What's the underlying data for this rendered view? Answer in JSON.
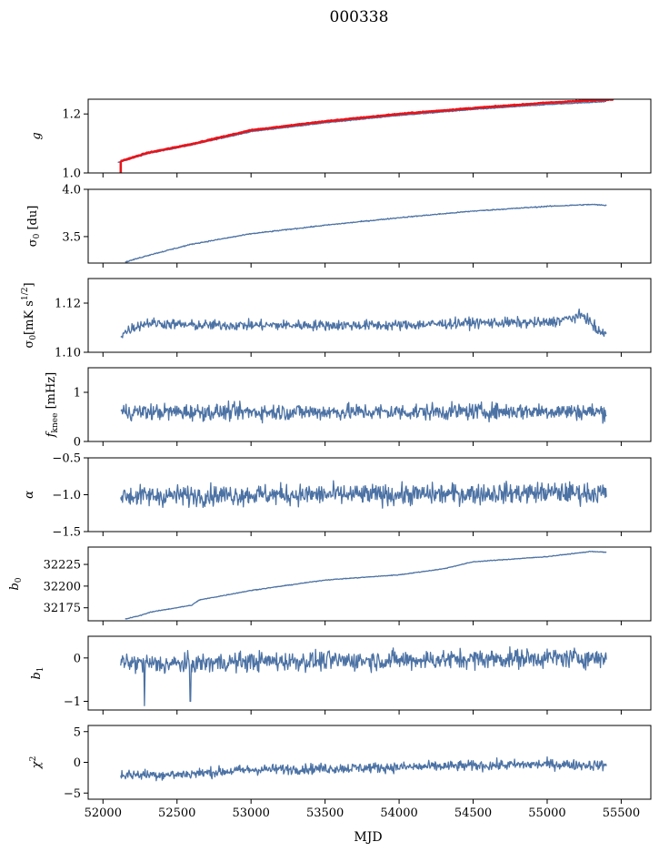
{
  "title": "000338",
  "xlabel": "MJD",
  "colors": {
    "series": "#4c72a4",
    "overlay": "#e8141b"
  },
  "chart_data": [
    {
      "type": "line",
      "ylabel": "g",
      "xlim": [
        51900,
        55700
      ],
      "ylim": [
        1.0,
        1.25
      ],
      "yticks": [
        1.0,
        1.2
      ],
      "ytick_labels": [
        "1.0",
        "1.2"
      ],
      "noise": 0.001,
      "series": [
        {
          "color": "#4c72a4",
          "x": [
            52100,
            52300,
            52600,
            53000,
            53500,
            54000,
            54500,
            55000,
            55400
          ],
          "y": [
            1.035,
            1.065,
            1.095,
            1.14,
            1.17,
            1.195,
            1.215,
            1.232,
            1.242
          ]
        },
        {
          "color": "#e8141b",
          "x": [
            52120,
            52300,
            52600,
            53000,
            53500,
            54000,
            54500,
            55000,
            55450
          ],
          "y": [
            1.04,
            1.068,
            1.098,
            1.145,
            1.175,
            1.2,
            1.22,
            1.238,
            1.25
          ],
          "drop": {
            "x": 52120,
            "y_from": 1.04,
            "y_to": 1.0
          }
        }
      ]
    },
    {
      "type": "line",
      "ylabel": "σ0 [du]",
      "xlim": [
        51900,
        55700
      ],
      "ylim": [
        3.22,
        4.0
      ],
      "yticks": [
        3.5,
        4.0
      ],
      "ytick_labels": [
        "3.5",
        "4.0"
      ],
      "noise": 0.004,
      "series": [
        {
          "x": [
            52150,
            52300,
            52600,
            53000,
            53500,
            54000,
            54500,
            55000,
            55300,
            55400
          ],
          "y": [
            3.23,
            3.3,
            3.42,
            3.53,
            3.62,
            3.7,
            3.77,
            3.82,
            3.84,
            3.83
          ]
        }
      ]
    },
    {
      "type": "line",
      "ylabel": "σ0[mK s^1/2]",
      "xlim": [
        51900,
        55700
      ],
      "ylim": [
        1.1,
        1.13
      ],
      "yticks": [
        1.1,
        1.12
      ],
      "ytick_labels": [
        "1.10",
        "1.12"
      ],
      "noise": 0.0015,
      "series": [
        {
          "x": [
            52120,
            52200,
            52300,
            52600,
            53000,
            53500,
            54000,
            54500,
            55000,
            55250,
            55350,
            55400
          ],
          "y": [
            1.107,
            1.11,
            1.112,
            1.111,
            1.111,
            1.111,
            1.111,
            1.112,
            1.112,
            1.115,
            1.108,
            1.108
          ]
        }
      ]
    },
    {
      "type": "line",
      "ylabel": "f_knee [mHz]",
      "xlim": [
        51900,
        55700
      ],
      "ylim": [
        0,
        1.5
      ],
      "yticks": [
        0,
        1
      ],
      "ytick_labels": [
        "0",
        "1"
      ],
      "noise": 0.12,
      "series": [
        {
          "x": [
            52120,
            53000,
            54000,
            55000,
            55400
          ],
          "y": [
            0.6,
            0.6,
            0.6,
            0.62,
            0.6
          ]
        }
      ]
    },
    {
      "type": "line",
      "ylabel": "α",
      "xlim": [
        51900,
        55700
      ],
      "ylim": [
        -1.5,
        -0.5
      ],
      "yticks": [
        -1.5,
        -1.0,
        -0.5
      ],
      "ytick_labels": [
        "−1.5",
        "−1.0",
        "−0.5"
      ],
      "noise": 0.1,
      "series": [
        {
          "x": [
            52120,
            53000,
            54000,
            55000,
            55400
          ],
          "y": [
            -1.02,
            -1.0,
            -1.0,
            -0.97,
            -0.98
          ]
        }
      ]
    },
    {
      "type": "line",
      "ylabel": "b0",
      "xlim": [
        51900,
        55700
      ],
      "ylim": [
        32160,
        32245
      ],
      "yticks": [
        32175,
        32200,
        32225
      ],
      "ytick_labels": [
        "32175",
        "32200",
        "32225"
      ],
      "noise": 0.3,
      "series": [
        {
          "x": [
            52150,
            52250,
            52320,
            52600,
            52650,
            53000,
            53500,
            54000,
            54300,
            54500,
            55000,
            55300,
            55400
          ],
          "y": [
            32162,
            32166,
            32170,
            32178,
            32184,
            32195,
            32207,
            32213,
            32220,
            32228,
            32234,
            32240,
            32239
          ]
        }
      ]
    },
    {
      "type": "line",
      "ylabel": "b1",
      "xlim": [
        51900,
        55700
      ],
      "ylim": [
        -1.2,
        0.5
      ],
      "yticks": [
        -1,
        0
      ],
      "ytick_labels": [
        "−1",
        "0"
      ],
      "noise": 0.16,
      "series": [
        {
          "x": [
            52120,
            52400,
            53000,
            54000,
            55000,
            55400
          ],
          "y": [
            -0.1,
            -0.15,
            -0.08,
            -0.05,
            0.0,
            0.0
          ]
        }
      ],
      "spikes": [
        {
          "x": 52280,
          "y": -1.1
        },
        {
          "x": 52590,
          "y": -1.0
        }
      ]
    },
    {
      "type": "line",
      "ylabel": "χ^2",
      "xlim": [
        51900,
        55700
      ],
      "ylim": [
        -6,
        6
      ],
      "yticks": [
        -5,
        0,
        5
      ],
      "ytick_labels": [
        "−5",
        "0",
        "5"
      ],
      "xticks": [
        52000,
        52500,
        53000,
        53500,
        54000,
        54500,
        55000,
        55500
      ],
      "xtick_labels": [
        "52000",
        "52500",
        "53000",
        "53500",
        "54000",
        "54500",
        "55000",
        "55500"
      ],
      "noise": 0.6,
      "series": [
        {
          "x": [
            52120,
            52500,
            53000,
            54000,
            55000,
            55400
          ],
          "y": [
            -2.0,
            -2.0,
            -1.2,
            -0.8,
            -0.3,
            -0.5
          ]
        }
      ]
    }
  ]
}
